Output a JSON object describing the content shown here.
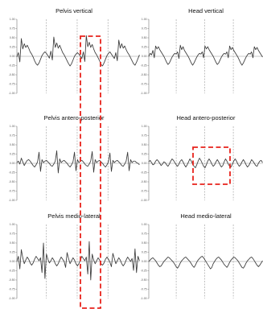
{
  "figure": {
    "highlight_color": "#e8221b",
    "trace_color": "#3a3a3a",
    "axis_color": "#777777",
    "divider_color": "#999999"
  },
  "chart_data": [
    {
      "type": "line",
      "title": "Pelvis vertical",
      "ylim": [
        -1.0,
        1.0
      ],
      "yticks": [
        "1.00",
        "0.75",
        "0.50",
        "0.25",
        "0.00",
        "-0.25",
        "-0.50",
        "-0.75",
        "-1.00"
      ],
      "x": [
        0,
        1.2,
        2.4,
        3.6,
        4.8,
        6.0,
        7.2,
        8.4,
        9.6,
        10.8,
        12.0,
        13.2,
        14.4,
        15.6,
        16.8,
        18.0,
        19.2,
        20.4,
        21.6,
        22.8,
        24.0,
        25.2,
        26.4,
        27.6,
        28.8,
        30.0,
        31.2,
        32.4,
        33.6,
        34.8,
        36.0,
        37.2,
        38.4,
        39.6,
        40.8,
        42.0,
        43.2,
        44.4,
        45.6,
        46.8,
        48.0,
        49.2,
        50.4,
        51.6,
        52.8,
        54.0,
        55.2,
        56.4,
        57.6,
        58.8,
        60.0,
        61.2,
        62.4,
        63.6,
        64.8,
        66.0,
        67.2,
        68.4,
        69.6,
        70.8,
        72.0,
        73.2,
        74.4,
        75.6,
        76.8,
        78.0,
        79.2,
        80.4,
        81.6,
        82.8,
        84.0,
        85.2,
        86.4,
        87.6,
        88.8,
        90.0,
        91.2,
        92.4,
        93.6,
        94.8,
        96.0,
        97.2,
        98.4,
        99.6
      ],
      "series": [
        {
          "values": [
            -0.02,
            0.1,
            -0.15,
            0.48,
            0.2,
            0.34,
            0.24,
            0.3,
            0.22,
            0.12,
            0.06,
            -0.02,
            -0.12,
            -0.2,
            -0.24,
            -0.18,
            -0.08,
            0.02,
            0.08,
            0.12,
            0.08,
            0.02,
            -0.05,
            0.14,
            -0.1,
            0.52,
            0.24,
            0.36,
            0.22,
            0.3,
            0.2,
            0.1,
            0.04,
            -0.04,
            -0.12,
            -0.2,
            -0.26,
            -0.2,
            -0.1,
            0.0,
            0.06,
            0.1,
            0.06,
            0.0,
            -0.06,
            0.12,
            -0.14,
            0.56,
            0.26,
            0.38,
            0.24,
            0.32,
            0.2,
            0.1,
            0.04,
            -0.04,
            -0.12,
            -0.22,
            -0.26,
            -0.18,
            -0.08,
            0.02,
            0.08,
            0.12,
            0.06,
            0.0,
            -0.06,
            0.1,
            -0.12,
            0.44,
            0.22,
            0.34,
            0.22,
            0.28,
            0.18,
            0.1,
            0.04,
            -0.04,
            -0.12,
            -0.2,
            -0.24,
            -0.16,
            -0.06,
            0.04
          ]
        }
      ]
    },
    {
      "type": "line",
      "title": "Head vertical",
      "ylim": [
        -1.0,
        1.0
      ],
      "yticks": [
        "1.00",
        "0.75",
        "0.50",
        "0.25",
        "0.00",
        "-0.25",
        "-0.50",
        "-0.75",
        "-1.00"
      ],
      "x": [
        0,
        1.2,
        2.4,
        3.6,
        4.8,
        6.0,
        7.2,
        8.4,
        9.6,
        10.8,
        12.0,
        13.2,
        14.4,
        15.6,
        16.8,
        18.0,
        19.2,
        20.4,
        21.6,
        22.8,
        24.0,
        25.2,
        26.4,
        27.6,
        28.8,
        30.0,
        31.2,
        32.4,
        33.6,
        34.8,
        36.0,
        37.2,
        38.4,
        39.6,
        40.8,
        42.0,
        43.2,
        44.4,
        45.6,
        46.8,
        48.0,
        49.2,
        50.4,
        51.6,
        52.8,
        54.0,
        55.2,
        56.4,
        57.6,
        58.8,
        60.0,
        61.2,
        62.4,
        63.6,
        64.8,
        66.0,
        67.2,
        68.4,
        69.6,
        70.8,
        72.0,
        73.2,
        74.4,
        75.6,
        76.8,
        78.0,
        79.2,
        80.4,
        81.6,
        82.8,
        84.0,
        85.2,
        86.4,
        87.6,
        88.8,
        90.0,
        91.2,
        92.4,
        93.6,
        94.8,
        96.0,
        97.2,
        98.4,
        99.6
      ],
      "series": [
        {
          "values": [
            0.0,
            0.08,
            0.04,
            0.16,
            -0.04,
            0.28,
            0.2,
            0.26,
            0.18,
            0.12,
            0.06,
            0.0,
            -0.08,
            -0.16,
            -0.22,
            -0.18,
            -0.1,
            -0.02,
            0.04,
            0.08,
            0.06,
            0.12,
            -0.06,
            0.3,
            0.18,
            0.26,
            0.16,
            0.1,
            0.04,
            -0.02,
            -0.1,
            -0.18,
            -0.24,
            -0.18,
            -0.1,
            -0.02,
            0.04,
            0.08,
            0.06,
            0.12,
            -0.04,
            0.28,
            0.2,
            0.26,
            0.18,
            0.12,
            0.06,
            0.0,
            -0.08,
            -0.16,
            -0.22,
            -0.18,
            -0.1,
            -0.02,
            0.04,
            0.08,
            0.06,
            0.12,
            -0.04,
            0.28,
            0.18,
            0.24,
            0.16,
            0.1,
            0.04,
            -0.02,
            -0.1,
            -0.18,
            -0.24,
            -0.18,
            -0.1,
            -0.02,
            0.04,
            0.08,
            0.06,
            0.12,
            -0.04,
            0.26,
            0.18,
            0.24,
            0.16,
            0.1,
            0.04,
            -0.02
          ]
        }
      ]
    },
    {
      "type": "line",
      "title": "Pelvis antero-posterior",
      "ylim": [
        -1.0,
        1.0
      ],
      "yticks": [
        "1.00",
        "0.75",
        "0.50",
        "0.25",
        "0.00",
        "-0.25",
        "-0.50",
        "-0.75",
        "-1.00"
      ],
      "x": [
        0,
        1.2,
        2.4,
        3.6,
        4.8,
        6.0,
        7.2,
        8.4,
        9.6,
        10.8,
        12.0,
        13.2,
        14.4,
        15.6,
        16.8,
        18.0,
        19.2,
        20.4,
        21.6,
        22.8,
        24.0,
        25.2,
        26.4,
        27.6,
        28.8,
        30.0,
        31.2,
        32.4,
        33.6,
        34.8,
        36.0,
        37.2,
        38.4,
        39.6,
        40.8,
        42.0,
        43.2,
        44.4,
        45.6,
        46.8,
        48.0,
        49.2,
        50.4,
        51.6,
        52.8,
        54.0,
        55.2,
        56.4,
        57.6,
        58.8,
        60.0,
        61.2,
        62.4,
        63.6,
        64.8,
        66.0,
        67.2,
        68.4,
        69.6,
        70.8,
        72.0,
        73.2,
        74.4,
        75.6,
        76.8,
        78.0,
        79.2,
        80.4,
        81.6,
        82.8,
        84.0,
        85.2,
        86.4,
        87.6,
        88.8,
        90.0,
        91.2,
        92.4,
        93.6,
        94.8,
        96.0,
        97.2,
        98.4,
        99.6
      ],
      "series": [
        {
          "values": [
            0.02,
            0.06,
            -0.02,
            0.14,
            0.04,
            -0.06,
            0.02,
            0.08,
            0.1,
            0.06,
            0.0,
            -0.06,
            -0.1,
            -0.04,
            0.04,
            0.3,
            -0.22,
            0.1,
            0.02,
            0.06,
            0.08,
            0.04,
            0.0,
            -0.06,
            -0.08,
            -0.02,
            0.06,
            0.34,
            -0.26,
            0.12,
            0.02,
            0.06,
            0.08,
            0.04,
            0.0,
            -0.06,
            -0.1,
            -0.04,
            0.04,
            0.3,
            -0.2,
            0.1,
            0.02,
            0.06,
            0.08,
            0.04,
            -0.02,
            -0.06,
            -0.08,
            -0.02,
            0.06,
            0.32,
            -0.24,
            0.1,
            0.02,
            0.06,
            0.08,
            0.04,
            0.0,
            -0.06,
            -0.1,
            -0.04,
            0.04,
            0.28,
            -0.22,
            0.08,
            0.02,
            0.06,
            0.08,
            0.04,
            0.0,
            -0.06,
            -0.08,
            -0.02,
            0.06,
            0.3,
            -0.2,
            0.1,
            0.02,
            0.06,
            0.06,
            0.02,
            0.0,
            -0.04
          ]
        }
      ]
    },
    {
      "type": "line",
      "title": "Head antero-posterior",
      "ylim": [
        -1.0,
        1.0
      ],
      "yticks": [
        "1.00",
        "0.75",
        "0.50",
        "0.25",
        "0.00",
        "-0.25",
        "-0.50",
        "-0.75",
        "-1.00"
      ],
      "x": [
        0,
        1.2,
        2.4,
        3.6,
        4.8,
        6.0,
        7.2,
        8.4,
        9.6,
        10.8,
        12.0,
        13.2,
        14.4,
        15.6,
        16.8,
        18.0,
        19.2,
        20.4,
        21.6,
        22.8,
        24.0,
        25.2,
        26.4,
        27.6,
        28.8,
        30.0,
        31.2,
        32.4,
        33.6,
        34.8,
        36.0,
        37.2,
        38.4,
        39.6,
        40.8,
        42.0,
        43.2,
        44.4,
        45.6,
        46.8,
        48.0,
        49.2,
        50.4,
        51.6,
        52.8,
        54.0,
        55.2,
        56.4,
        57.6,
        58.8,
        60.0,
        61.2,
        62.4,
        63.6,
        64.8,
        66.0,
        67.2,
        68.4,
        69.6,
        70.8,
        72.0,
        73.2,
        74.4,
        75.6,
        76.8,
        78.0,
        79.2,
        80.4,
        81.6,
        82.8,
        84.0,
        85.2,
        86.4,
        87.6,
        88.8,
        90.0,
        91.2,
        92.4,
        93.6,
        94.8,
        96.0,
        97.2,
        98.4,
        99.6
      ],
      "series": [
        {
          "values": [
            0.04,
            0.08,
            0.02,
            -0.04,
            -0.02,
            0.06,
            0.1,
            0.06,
            0.0,
            -0.06,
            -0.02,
            0.04,
            0.02,
            -0.04,
            -0.08,
            -0.02,
            0.06,
            0.12,
            0.08,
            0.02,
            -0.04,
            -0.08,
            -0.02,
            0.06,
            0.1,
            0.04,
            -0.04,
            -0.1,
            -0.04,
            0.04,
            0.12,
            0.06,
            -0.02,
            -0.08,
            -0.12,
            -0.04,
            0.06,
            0.14,
            0.08,
            0.0,
            -0.08,
            -0.12,
            -0.04,
            0.06,
            0.12,
            0.06,
            -0.02,
            -0.08,
            -0.04,
            0.04,
            0.1,
            0.04,
            -0.04,
            -0.1,
            -0.06,
            0.04,
            0.12,
            0.06,
            -0.02,
            -0.08,
            -0.1,
            -0.02,
            0.06,
            0.12,
            0.06,
            -0.02,
            -0.08,
            -0.04,
            0.04,
            0.1,
            0.04,
            -0.04,
            -0.1,
            -0.06,
            0.02,
            0.1,
            0.06,
            0.0,
            -0.06,
            -0.08,
            0.0,
            0.06,
            0.08,
            0.02
          ]
        }
      ]
    },
    {
      "type": "line",
      "title": "Pelvis medio-lateral",
      "ylim": [
        -1.0,
        1.0
      ],
      "yticks": [
        "1.00",
        "0.75",
        "0.50",
        "0.25",
        "0.00",
        "-0.25",
        "-0.50",
        "-0.75",
        "-1.00"
      ],
      "x": [
        0,
        1.2,
        2.4,
        3.6,
        4.8,
        6.0,
        7.2,
        8.4,
        9.6,
        10.8,
        12.0,
        13.2,
        14.4,
        15.6,
        16.8,
        18.0,
        19.2,
        20.4,
        21.6,
        22.8,
        24.0,
        25.2,
        26.4,
        27.6,
        28.8,
        30.0,
        31.2,
        32.4,
        33.6,
        34.8,
        36.0,
        37.2,
        38.4,
        39.6,
        40.8,
        42.0,
        43.2,
        44.4,
        45.6,
        46.8,
        48.0,
        49.2,
        50.4,
        51.6,
        52.8,
        54.0,
        55.2,
        56.4,
        57.6,
        58.8,
        60.0,
        61.2,
        62.4,
        63.6,
        64.8,
        66.0,
        67.2,
        68.4,
        69.6,
        70.8,
        72.0,
        73.2,
        74.4,
        75.6,
        76.8,
        78.0,
        79.2,
        80.4,
        81.6,
        82.8,
        84.0,
        85.2,
        86.4,
        87.6,
        88.8,
        90.0,
        91.2,
        92.4,
        93.6,
        94.8,
        96.0,
        97.2,
        98.4,
        99.6
      ],
      "series": [
        {
          "values": [
            0.0,
            0.14,
            -0.2,
            0.32,
            0.1,
            -0.06,
            0.04,
            0.12,
            0.06,
            -0.04,
            -0.1,
            -0.04,
            0.06,
            0.14,
            0.08,
            0.02,
            0.1,
            -0.3,
            0.5,
            -0.46,
            0.2,
            0.06,
            -0.04,
            0.02,
            0.1,
            0.04,
            -0.06,
            -0.12,
            -0.06,
            0.04,
            0.12,
            0.06,
            0.0,
            -0.16,
            0.24,
            0.08,
            -0.06,
            0.02,
            0.1,
            0.04,
            -0.06,
            -0.12,
            -0.06,
            0.04,
            0.14,
            0.08,
            0.02,
            0.12,
            -0.34,
            0.54,
            -0.5,
            0.2,
            0.04,
            -0.06,
            0.02,
            0.1,
            0.04,
            -0.06,
            -0.1,
            -0.04,
            0.06,
            0.12,
            0.06,
            -0.02,
            -0.14,
            0.22,
            0.08,
            -0.06,
            0.02,
            0.1,
            0.04,
            -0.06,
            -0.12,
            -0.06,
            0.04,
            0.12,
            0.06,
            0.0,
            0.08,
            -0.24,
            0.34,
            -0.3,
            0.14,
            0.02
          ]
        }
      ]
    },
    {
      "type": "line",
      "title": "Head medio-lateral",
      "ylim": [
        -1.0,
        1.0
      ],
      "yticks": [
        "1.00",
        "0.75",
        "0.50",
        "0.25",
        "0.00",
        "-0.25",
        "-0.50",
        "-0.75",
        "-1.00"
      ],
      "x": [
        0,
        1.2,
        2.4,
        3.6,
        4.8,
        6.0,
        7.2,
        8.4,
        9.6,
        10.8,
        12.0,
        13.2,
        14.4,
        15.6,
        16.8,
        18.0,
        19.2,
        20.4,
        21.6,
        22.8,
        24.0,
        25.2,
        26.4,
        27.6,
        28.8,
        30.0,
        31.2,
        32.4,
        33.6,
        34.8,
        36.0,
        37.2,
        38.4,
        39.6,
        40.8,
        42.0,
        43.2,
        44.4,
        45.6,
        46.8,
        48.0,
        49.2,
        50.4,
        51.6,
        52.8,
        54.0,
        55.2,
        56.4,
        57.6,
        58.8,
        60.0,
        61.2,
        62.4,
        63.6,
        64.8,
        66.0,
        67.2,
        68.4,
        69.6,
        70.8,
        72.0,
        73.2,
        74.4,
        75.6,
        76.8,
        78.0,
        79.2,
        80.4,
        81.6,
        82.8,
        84.0,
        85.2,
        86.4,
        87.6,
        88.8,
        90.0,
        91.2,
        92.4,
        93.6,
        94.8,
        96.0,
        97.2,
        98.4,
        99.6
      ],
      "series": [
        {
          "values": [
            0.0,
            0.04,
            0.08,
            0.1,
            0.06,
            0.02,
            -0.04,
            -0.1,
            -0.14,
            -0.12,
            -0.06,
            0.0,
            0.04,
            0.08,
            0.12,
            0.1,
            0.06,
            0.02,
            -0.02,
            -0.08,
            -0.14,
            -0.18,
            -0.12,
            -0.04,
            0.02,
            0.06,
            0.1,
            0.12,
            0.08,
            0.04,
            0.0,
            -0.06,
            -0.12,
            -0.16,
            -0.1,
            -0.02,
            0.04,
            0.08,
            0.12,
            0.14,
            0.1,
            0.04,
            -0.02,
            -0.08,
            -0.14,
            -0.2,
            -0.16,
            -0.06,
            0.0,
            0.06,
            0.1,
            0.12,
            0.08,
            0.04,
            -0.02,
            -0.08,
            -0.12,
            -0.16,
            -0.1,
            -0.02,
            0.04,
            0.08,
            0.12,
            0.1,
            0.06,
            0.02,
            -0.04,
            -0.1,
            -0.16,
            -0.18,
            -0.12,
            -0.04,
            0.02,
            0.06,
            0.1,
            0.12,
            0.08,
            0.02,
            -0.04,
            -0.1,
            -0.14,
            -0.1,
            -0.04,
            0.02
          ]
        }
      ]
    }
  ]
}
